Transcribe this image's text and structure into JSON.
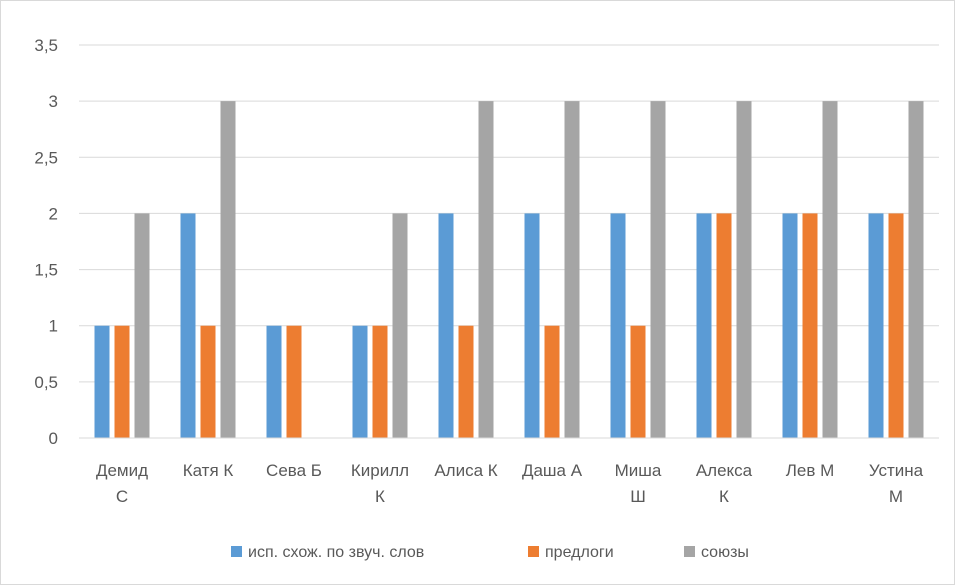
{
  "chart_data": {
    "type": "bar",
    "categories": [
      [
        "Демид",
        "С"
      ],
      [
        "Катя К"
      ],
      [
        "Сева Б"
      ],
      [
        "Кирилл",
        "К"
      ],
      [
        "Алиса К"
      ],
      [
        "Даша А"
      ],
      [
        "Миша",
        "Ш"
      ],
      [
        "Алекса",
        "К"
      ],
      [
        "Лев М"
      ],
      [
        "Устина",
        "М"
      ]
    ],
    "series": [
      {
        "name": "исп. схож. по звуч. слов",
        "color": "#5b9bd5",
        "values": [
          1,
          2,
          1,
          1,
          2,
          2,
          2,
          2,
          2,
          2
        ]
      },
      {
        "name": "предлоги",
        "color": "#ed7d31",
        "values": [
          1,
          1,
          1,
          1,
          1,
          1,
          1,
          2,
          2,
          2
        ]
      },
      {
        "name": "союзы",
        "color": "#a5a5a5",
        "values": [
          2,
          3,
          0,
          2,
          3,
          3,
          3,
          3,
          3,
          3
        ]
      }
    ],
    "ylim": [
      0,
      3.5
    ],
    "ytick_step": 0.5,
    "ytick_labels": [
      "0",
      "0,5",
      "1",
      "1,5",
      "2",
      "2,5",
      "3",
      "3,5"
    ],
    "grid": true,
    "legend_position": "bottom"
  }
}
